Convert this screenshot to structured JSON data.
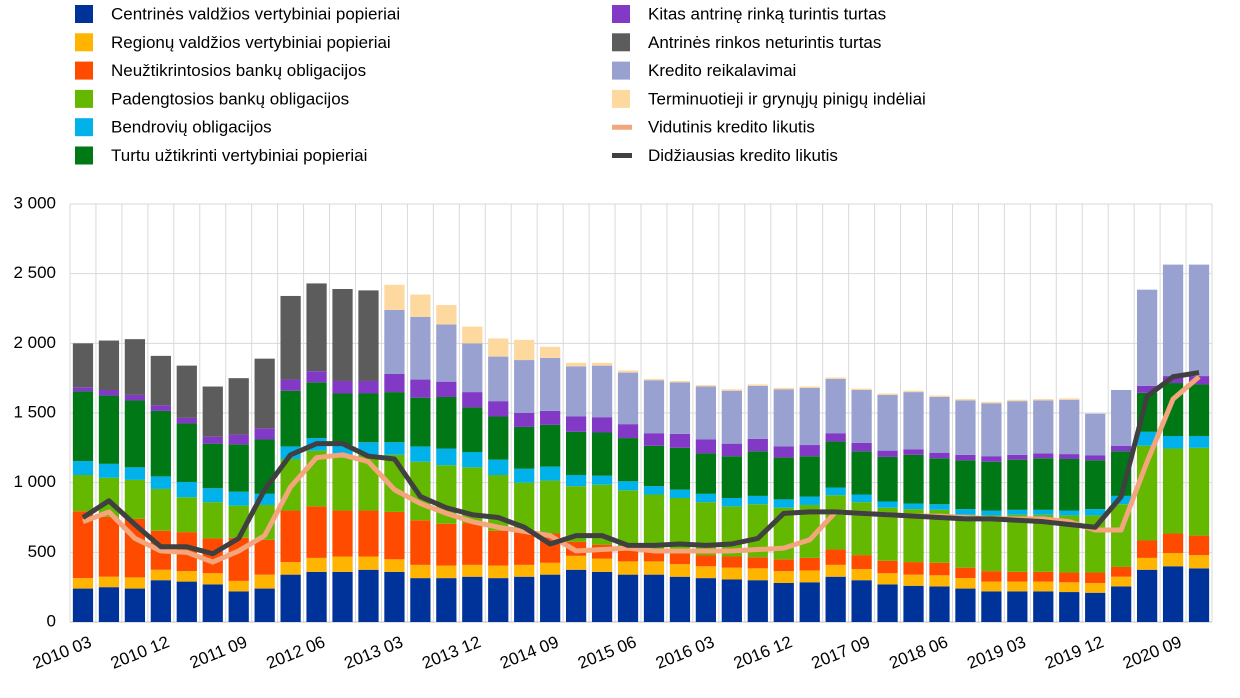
{
  "chart_data": {
    "type": "bar",
    "stacked": true,
    "categories": [
      "2010 03",
      null,
      null,
      "2010 12",
      null,
      null,
      "2011 09",
      null,
      null,
      "2012 06",
      null,
      null,
      "2013 03",
      null,
      null,
      "2013 12",
      null,
      null,
      "2014 09",
      null,
      null,
      "2015 06",
      null,
      null,
      "2016 03",
      null,
      null,
      "2016 12",
      null,
      null,
      "2017 09",
      null,
      null,
      "2018 06",
      null,
      null,
      "2019 03",
      null,
      null,
      "2019 12",
      null,
      null,
      "2020 09",
      null
    ],
    "ylim": [
      0,
      3000
    ],
    "yticks": [
      0,
      500,
      {
        "value": 1000,
        "label": "1 000"
      },
      {
        "value": 1500,
        "label": "1 500"
      },
      {
        "value": 2000,
        "label": "2 000"
      },
      {
        "value": 2500,
        "label": "2 500"
      },
      {
        "value": 3000,
        "label": "3 000"
      }
    ],
    "grid": true,
    "series": [
      {
        "name": "Centrinės valdžios vertybiniai popieriai",
        "type": "bar",
        "color": "#003399",
        "values": [
          240,
          250,
          240,
          300,
          290,
          270,
          220,
          240,
          340,
          360,
          360,
          375,
          360,
          315,
          315,
          325,
          315,
          325,
          340,
          375,
          360,
          340,
          340,
          325,
          315,
          305,
          300,
          280,
          285,
          325,
          300,
          270,
          260,
          255,
          240,
          220,
          220,
          220,
          215,
          210,
          255,
          375,
          400,
          385
        ]
      },
      {
        "name": "Regionų valdžios vertybiniai popieriai",
        "type": "bar",
        "color": "#ffb400",
        "values": [
          75,
          75,
          80,
          75,
          75,
          80,
          75,
          100,
          90,
          100,
          110,
          95,
          90,
          95,
          90,
          85,
          90,
          85,
          85,
          100,
          95,
          95,
          95,
          90,
          85,
          85,
          85,
          85,
          85,
          85,
          80,
          80,
          80,
          80,
          75,
          70,
          70,
          70,
          70,
          70,
          70,
          85,
          95,
          95
        ]
      },
      {
        "name": "Neužtikrintosios bankų obligacijos",
        "type": "bar",
        "color": "#ff4b00",
        "values": [
          480,
          430,
          420,
          280,
          280,
          250,
          310,
          250,
          370,
          370,
          330,
          330,
          340,
          320,
          300,
          300,
          250,
          240,
          210,
          100,
          100,
          80,
          80,
          85,
          80,
          80,
          80,
          85,
          90,
          110,
          100,
          90,
          90,
          90,
          75,
          75,
          70,
          70,
          70,
          75,
          70,
          125,
          140,
          140
        ]
      },
      {
        "name": "Padengtosios bankų obligacijos",
        "type": "bar",
        "color": "#65b800",
        "values": [
          260,
          280,
          280,
          300,
          250,
          260,
          230,
          250,
          370,
          400,
          380,
          400,
          410,
          420,
          420,
          400,
          400,
          350,
          380,
          400,
          430,
          430,
          400,
          390,
          380,
          360,
          380,
          370,
          380,
          390,
          380,
          380,
          380,
          380,
          380,
          400,
          410,
          410,
          410,
          410,
          450,
          680,
          610,
          630
        ]
      },
      {
        "name": "Bendrovių obligacijos",
        "type": "bar",
        "color": "#00b1ea",
        "values": [
          100,
          100,
          90,
          90,
          110,
          100,
          100,
          80,
          90,
          90,
          90,
          90,
          90,
          110,
          120,
          110,
          110,
          100,
          100,
          80,
          65,
          65,
          60,
          60,
          60,
          60,
          60,
          60,
          60,
          55,
          55,
          45,
          40,
          40,
          40,
          35,
          35,
          35,
          35,
          45,
          60,
          100,
          90,
          85
        ]
      },
      {
        "name": "Turtu užtikrinti vertybiniai popieriai",
        "type": "bar",
        "color": "#007816",
        "values": [
          500,
          490,
          480,
          470,
          420,
          320,
          340,
          390,
          400,
          400,
          370,
          350,
          360,
          350,
          370,
          320,
          310,
          300,
          300,
          310,
          310,
          310,
          290,
          300,
          290,
          300,
          320,
          300,
          290,
          330,
          310,
          320,
          350,
          330,
          350,
          350,
          360,
          370,
          370,
          350,
          320,
          280,
          380,
          370
        ]
      },
      {
        "name": "Kitas antrinę rinką turintis turtas",
        "type": "bar",
        "color": "#8139c6",
        "values": [
          30,
          40,
          40,
          40,
          40,
          50,
          70,
          80,
          80,
          80,
          90,
          90,
          130,
          130,
          110,
          110,
          110,
          100,
          100,
          110,
          110,
          100,
          90,
          100,
          100,
          90,
          90,
          80,
          80,
          60,
          60,
          45,
          40,
          40,
          40,
          40,
          35,
          35,
          35,
          35,
          40,
          50,
          50,
          60
        ]
      },
      {
        "name": "Antrinės rinkos neturintis turtas",
        "type": "bar",
        "color": "#5c5c5c",
        "values": [
          315,
          355,
          400,
          355,
          375,
          360,
          405,
          500,
          600,
          630,
          660,
          650,
          0,
          0,
          0,
          0,
          0,
          0,
          0,
          0,
          0,
          0,
          0,
          0,
          0,
          0,
          0,
          0,
          0,
          0,
          0,
          0,
          0,
          0,
          0,
          0,
          0,
          0,
          0,
          0,
          0,
          0,
          0,
          0
        ]
      },
      {
        "name": "Kredito reikalavimai",
        "type": "bar",
        "color": "#98a1d0",
        "values": [
          0,
          0,
          0,
          0,
          0,
          0,
          0,
          0,
          0,
          0,
          0,
          0,
          460,
          450,
          410,
          350,
          320,
          380,
          380,
          360,
          370,
          370,
          380,
          370,
          380,
          380,
          380,
          410,
          410,
          390,
          380,
          400,
          410,
          400,
          390,
          380,
          385,
          380,
          390,
          300,
          400,
          690,
          800,
          800
        ]
      },
      {
        "name": "Terminuotieji ir grynųjų pinigų indėliai",
        "type": "bar",
        "color": "#fdd89f",
        "values": [
          0,
          0,
          0,
          0,
          0,
          0,
          0,
          0,
          0,
          0,
          0,
          0,
          180,
          160,
          140,
          120,
          130,
          145,
          80,
          25,
          20,
          15,
          10,
          10,
          10,
          10,
          10,
          10,
          10,
          10,
          10,
          10,
          10,
          10,
          10,
          10,
          10,
          10,
          10,
          0,
          0,
          0,
          0,
          0
        ]
      },
      {
        "name": "Vidutinis kredito likutis",
        "type": "line",
        "color": "#f3a57b",
        "values": [
          720,
          790,
          600,
          510,
          500,
          430,
          510,
          620,
          970,
          1180,
          1200,
          1150,
          950,
          850,
          780,
          720,
          680,
          650,
          620,
          510,
          520,
          530,
          510,
          510,
          510,
          510,
          520,
          530,
          590,
          790,
          780,
          770,
          760,
          760,
          750,
          740,
          740,
          740,
          720,
          660,
          660,
          1150,
          1600,
          1760
        ]
      },
      {
        "name": "Didžiausias kredito likutis",
        "type": "line",
        "color": "#404040",
        "values": [
          750,
          870,
          700,
          540,
          540,
          490,
          600,
          950,
          1200,
          1280,
          1280,
          1190,
          1170,
          900,
          820,
          770,
          750,
          680,
          560,
          620,
          620,
          550,
          550,
          560,
          550,
          560,
          600,
          780,
          790,
          790,
          780,
          770,
          760,
          750,
          740,
          740,
          730,
          720,
          700,
          680,
          900,
          1620,
          1760,
          1790
        ]
      }
    ]
  }
}
